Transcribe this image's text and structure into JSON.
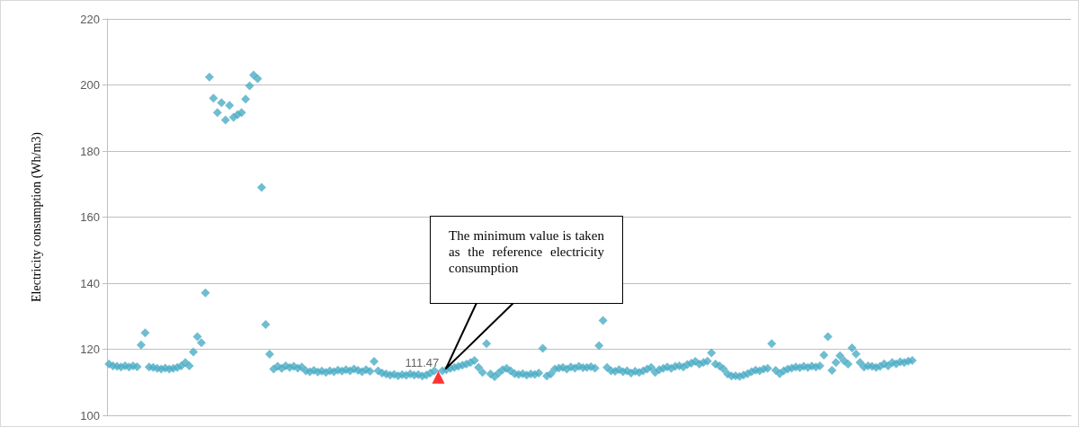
{
  "chart_data": {
    "type": "scatter",
    "ylabel": "Electricity consumption (Wh/m3)",
    "ylim": [
      100,
      220
    ],
    "yticks": [
      100,
      120,
      140,
      160,
      180,
      200,
      220
    ],
    "grid": "y",
    "marker": "diamond",
    "annotations": [
      "The minimum value is taken as the reference electricity consumption"
    ],
    "categories": [
      null,
      null,
      null,
      null,
      null,
      null,
      null,
      null,
      null,
      null,
      null,
      null,
      null,
      null,
      null,
      null,
      null,
      null,
      null,
      null,
      null,
      null,
      null,
      null,
      null,
      null,
      null,
      null,
      null,
      null,
      null,
      null,
      null,
      null,
      null,
      null,
      null,
      null,
      null,
      null,
      null,
      null,
      null,
      null,
      null,
      null,
      null,
      null,
      null,
      null,
      null,
      null,
      null,
      null,
      null,
      null,
      null,
      null,
      null,
      null,
      null,
      null,
      null,
      null,
      null,
      null,
      null,
      null,
      null,
      null,
      null,
      null,
      null,
      null,
      null,
      null,
      null,
      null,
      null,
      null,
      null,
      null,
      null,
      null,
      null,
      null,
      null,
      null,
      null,
      null,
      null,
      null,
      null,
      null,
      null,
      null,
      null,
      null,
      null,
      null,
      null,
      null,
      null,
      null,
      null,
      null,
      null,
      null,
      null,
      null,
      null,
      null,
      null,
      null,
      null,
      null,
      null,
      null,
      null,
      null,
      null,
      null,
      null,
      null,
      null,
      null,
      null,
      null,
      null,
      null,
      null,
      null,
      null,
      null,
      null,
      null,
      null,
      null,
      null,
      null,
      null,
      null,
      null,
      null,
      null,
      null,
      null,
      null,
      null,
      null,
      null,
      null,
      null,
      null,
      null,
      null,
      null,
      null,
      null,
      null,
      null,
      null,
      null,
      null,
      null,
      null,
      null,
      null,
      null,
      null,
      null,
      null,
      null,
      null,
      null,
      null,
      null,
      null,
      null,
      null,
      null,
      null,
      null,
      null,
      null,
      null,
      null,
      null,
      null,
      null,
      null,
      null,
      null,
      null,
      null,
      null,
      null,
      null,
      null,
      null,
      null,
      null,
      null,
      null,
      null,
      null,
      null,
      null,
      null,
      null,
      null,
      null,
      null,
      null,
      null,
      null,
      null,
      null,
      null,
      null,
      null,
      null,
      null,
      null,
      null,
      null,
      null,
      null,
      null,
      null,
      null,
      null,
      null,
      null,
      null,
      null,
      null,
      null,
      null,
      null
    ],
    "series": [
      {
        "color": "#4bacc6",
        "values": [
          115.5,
          115,
          114.8,
          114.6,
          115,
          114.6,
          115,
          114.7,
          121.3,
          125,
          114.6,
          114.5,
          114.2,
          114,
          114.3,
          114,
          114.2,
          114.5,
          115,
          116,
          115,
          119.2,
          123.8,
          122,
          137.1,
          202.4,
          196,
          191.6,
          194.6,
          189.4,
          193.8,
          190.2,
          191,
          191.6,
          195.7,
          199.7,
          203,
          201.9,
          169,
          127.5,
          118.5,
          114,
          114.8,
          114.2,
          115,
          114.5,
          114.8,
          114.3,
          114.6,
          113.5,
          113.2,
          113.6,
          113.1,
          113.4,
          113,
          113.5,
          113.2,
          113.7,
          113.4,
          113.8,
          113.5,
          114,
          113.6,
          113.2,
          113.8,
          113.3,
          116.3,
          113.5,
          112.8,
          112.5,
          112.2,
          112.4,
          112,
          112.3,
          112.1,
          112.5,
          112.2,
          112.3,
          111.9,
          112.2,
          112.8,
          113.5,
          null,
          113.5,
          113.8,
          114.2,
          114.5,
          114.8,
          115.2,
          115.5,
          116,
          116.6,
          114.5,
          113,
          121.7,
          112.5,
          111.7,
          112.8,
          113.8,
          114.2,
          113.5,
          112.6,
          112.4,
          112.6,
          112.2,
          112.5,
          112.4,
          112.8,
          120.3,
          111.9,
          112.5,
          114,
          114.3,
          114.5,
          114,
          114.6,
          114.3,
          114.8,
          114.4,
          114.5,
          114.7,
          114.3,
          121.1,
          128.7,
          114.5,
          113.5,
          113.3,
          113.8,
          113.2,
          113.5,
          112.8,
          113.3,
          113,
          113.5,
          114,
          114.5,
          113,
          113.8,
          114.2,
          114.6,
          114.2,
          114.8,
          115,
          114.6,
          115.4,
          115.8,
          116.3,
          115.5,
          116,
          116.4,
          118.9,
          115.5,
          115,
          114,
          112.5,
          111.9,
          112,
          111.8,
          112.2,
          112.6,
          113.2,
          113.7,
          113.5,
          114,
          114.2,
          121.7,
          113.6,
          112.6,
          113.5,
          114,
          114.3,
          114.6,
          114.4,
          114.8,
          114.5,
          114.9,
          114.6,
          115,
          118.2,
          123.8,
          113.6,
          116,
          118,
          116.5,
          115.5,
          120.4,
          118.6,
          116,
          114.6,
          115,
          114.8,
          114.5,
          114.8,
          115.6,
          115,
          116,
          115.6,
          116.2,
          116,
          116.4,
          116.6,
          null,
          null,
          null,
          null,
          null,
          null,
          null,
          null,
          null,
          null,
          null,
          null,
          null,
          null,
          null,
          null,
          null,
          null,
          null,
          null,
          null,
          null,
          null,
          null,
          null,
          null,
          null,
          null,
          null,
          null,
          null,
          null,
          null,
          null,
          null,
          null,
          null,
          null,
          null
        ]
      },
      {
        "color": "#ff0000",
        "marker": "triangle",
        "values": [
          null,
          null,
          null,
          null,
          null,
          null,
          null,
          null,
          null,
          null,
          null,
          null,
          null,
          null,
          null,
          null,
          null,
          null,
          null,
          null,
          null,
          null,
          null,
          null,
          null,
          null,
          null,
          null,
          null,
          null,
          null,
          null,
          null,
          null,
          null,
          null,
          null,
          null,
          null,
          null,
          null,
          null,
          null,
          null,
          null,
          null,
          null,
          null,
          null,
          null,
          null,
          null,
          null,
          null,
          null,
          null,
          null,
          null,
          null,
          null,
          null,
          null,
          null,
          null,
          null,
          null,
          null,
          null,
          null,
          null,
          null,
          null,
          null,
          null,
          null,
          null,
          null,
          null,
          null,
          null,
          null,
          null,
          111.47,
          null,
          null,
          null,
          null,
          null,
          null,
          null,
          null,
          null,
          null,
          null,
          null,
          null,
          null,
          null,
          null,
          null,
          null,
          null,
          null,
          null,
          null,
          null,
          null,
          null,
          null,
          null,
          null,
          null,
          null,
          null,
          null,
          null,
          null,
          null,
          null,
          null,
          null,
          null,
          null,
          null,
          null,
          null,
          null,
          null,
          null,
          null,
          null,
          null,
          null,
          null,
          null,
          null,
          null,
          null,
          null,
          null,
          null,
          null,
          null,
          null,
          null,
          null,
          null,
          null,
          null,
          null,
          null,
          null,
          null,
          null,
          null,
          null,
          null,
          null,
          null,
          null,
          null,
          null,
          null,
          null,
          null,
          null,
          null,
          null,
          null,
          null,
          null,
          null,
          null,
          null,
          null,
          null,
          null,
          null,
          null,
          null,
          null,
          null,
          null,
          null,
          null,
          null,
          null,
          null,
          null,
          null,
          null,
          null,
          null,
          null,
          null,
          null,
          null,
          null,
          null,
          null,
          null,
          null,
          null,
          null,
          null,
          null,
          null,
          null,
          null,
          null,
          null,
          null,
          null,
          null,
          null,
          null,
          null,
          null,
          null,
          null,
          null,
          null,
          null,
          null,
          null,
          null,
          null,
          null,
          null,
          null,
          null,
          null,
          null,
          null,
          null,
          null,
          null,
          null,
          null,
          null
        ],
        "value_labels": [
          null,
          null,
          null,
          null,
          null,
          null,
          null,
          null,
          null,
          null,
          null,
          null,
          null,
          null,
          null,
          null,
          null,
          null,
          null,
          null,
          null,
          null,
          null,
          null,
          null,
          null,
          null,
          null,
          null,
          null,
          null,
          null,
          null,
          null,
          null,
          null,
          null,
          null,
          null,
          null,
          null,
          null,
          null,
          null,
          null,
          null,
          null,
          null,
          null,
          null,
          null,
          null,
          null,
          null,
          null,
          null,
          null,
          null,
          null,
          null,
          null,
          null,
          null,
          null,
          null,
          null,
          null,
          null,
          null,
          null,
          null,
          null,
          null,
          null,
          null,
          null,
          null,
          null,
          null,
          null,
          null,
          null,
          "111.47",
          null,
          null,
          null,
          null,
          null,
          null,
          null,
          null,
          null,
          null,
          null,
          null,
          null,
          null,
          null,
          null,
          null,
          null,
          null,
          null,
          null,
          null,
          null,
          null,
          null,
          null,
          null,
          null,
          null,
          null,
          null,
          null,
          null,
          null,
          null,
          null,
          null,
          null,
          null,
          null,
          null,
          null,
          null,
          null,
          null,
          null,
          null,
          null,
          null,
          null,
          null,
          null,
          null,
          null,
          null,
          null,
          null,
          null,
          null,
          null,
          null,
          null,
          null,
          null,
          null,
          null,
          null,
          null,
          null,
          null,
          null,
          null,
          null,
          null,
          null,
          null,
          null,
          null,
          null,
          null,
          null,
          null,
          null,
          null,
          null,
          null,
          null,
          null,
          null,
          null,
          null,
          null,
          null,
          null,
          null,
          null,
          null,
          null,
          null,
          null,
          null,
          null,
          null,
          null,
          null,
          null,
          null,
          null,
          null,
          null,
          null,
          null,
          null,
          null,
          null,
          null,
          null,
          null,
          null,
          null,
          null,
          null,
          null,
          null,
          null,
          null,
          null,
          null,
          null,
          null,
          null,
          null,
          null,
          null,
          null,
          null,
          null,
          null,
          null,
          null,
          null,
          null,
          null,
          null,
          null,
          null,
          null,
          null,
          null,
          null,
          null,
          null,
          null,
          null,
          null,
          null,
          null
        ]
      }
    ]
  }
}
